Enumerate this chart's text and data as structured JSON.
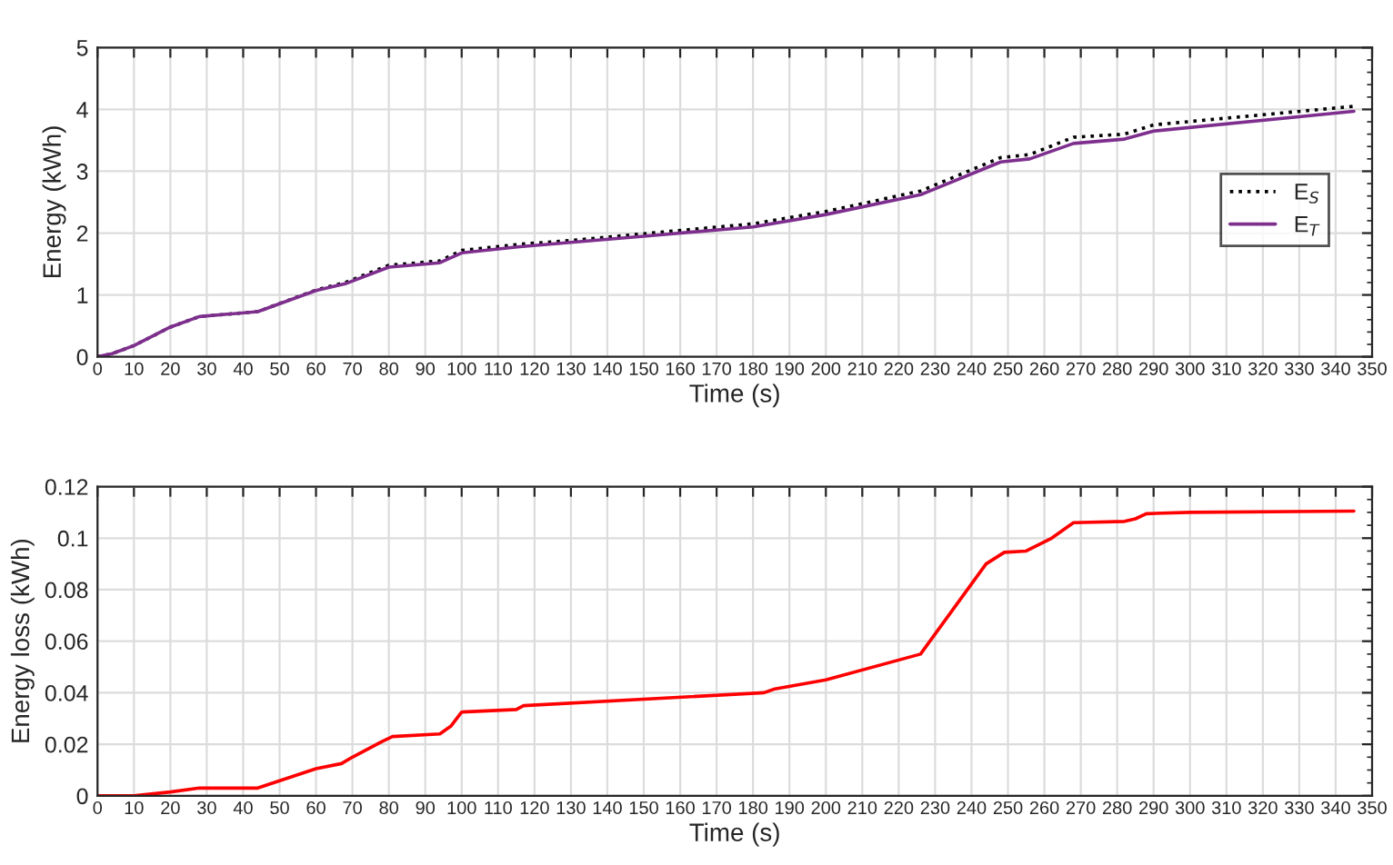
{
  "chart_data": [
    {
      "type": "line",
      "xlabel": "Time (s)",
      "ylabel": "Energy (kWh)",
      "xlim": [
        0,
        350
      ],
      "xticks": [
        0,
        10,
        20,
        30,
        40,
        50,
        60,
        70,
        80,
        90,
        100,
        110,
        120,
        130,
        140,
        150,
        160,
        170,
        180,
        190,
        200,
        210,
        220,
        230,
        240,
        250,
        260,
        270,
        280,
        290,
        300,
        310,
        320,
        330,
        340,
        350
      ],
      "ylim": [
        0,
        5
      ],
      "yticks": [
        0,
        1,
        2,
        3,
        4,
        5
      ],
      "grid": true,
      "legend": "right",
      "marker": "none",
      "series": [
        {
          "name": "E$_{S}$",
          "color": "#000000",
          "line_style": "dotted",
          "x": [
            0,
            4,
            10,
            20,
            28,
            44,
            60,
            68,
            80,
            94,
            100,
            116,
            130,
            150,
            180,
            200,
            226,
            248,
            256,
            268,
            282,
            290,
            345
          ],
          "values": [
            0,
            0.05,
            0.18,
            0.48,
            0.65,
            0.73,
            1.08,
            1.2,
            1.48,
            1.55,
            1.72,
            1.82,
            1.88,
            1.99,
            2.15,
            2.35,
            2.68,
            3.22,
            3.27,
            3.55,
            3.6,
            3.75,
            4.05
          ]
        },
        {
          "name": "E$_{T}$",
          "color": "#7e2f8e",
          "line_style": "solid",
          "x": [
            0,
            4,
            10,
            20,
            28,
            44,
            60,
            68,
            80,
            94,
            100,
            116,
            130,
            150,
            180,
            200,
            226,
            248,
            256,
            268,
            282,
            290,
            345
          ],
          "values": [
            0,
            0.05,
            0.18,
            0.48,
            0.65,
            0.73,
            1.07,
            1.18,
            1.45,
            1.52,
            1.68,
            1.78,
            1.85,
            1.95,
            2.1,
            2.3,
            2.62,
            3.15,
            3.2,
            3.45,
            3.52,
            3.65,
            3.97
          ]
        }
      ]
    },
    {
      "type": "line",
      "xlabel": "Time (s)",
      "ylabel": "Energy loss (kWh)",
      "xlim": [
        0,
        350
      ],
      "xticks": [
        0,
        10,
        20,
        30,
        40,
        50,
        60,
        70,
        80,
        90,
        100,
        110,
        120,
        130,
        140,
        150,
        160,
        170,
        180,
        190,
        200,
        210,
        220,
        230,
        240,
        250,
        260,
        270,
        280,
        290,
        300,
        310,
        320,
        330,
        340,
        350
      ],
      "ylim": [
        0,
        0.12
      ],
      "yticks": [
        0,
        0.02,
        0.04,
        0.06,
        0.08,
        0.1,
        0.12
      ],
      "grid": true,
      "marker": "none",
      "line_style": "solid",
      "series": [
        {
          "color": "#ff0000",
          "x": [
            0,
            10,
            20,
            28,
            44,
            60,
            67,
            70,
            78,
            81,
            94,
            97,
            100,
            115,
            117,
            183,
            186,
            200,
            226,
            244,
            249,
            255,
            262,
            268,
            282,
            285,
            288,
            300,
            345
          ],
          "values": [
            0,
            0,
            0.0015,
            0.003,
            0.003,
            0.0105,
            0.0125,
            0.015,
            0.021,
            0.023,
            0.024,
            0.027,
            0.0325,
            0.0335,
            0.035,
            0.04,
            0.0415,
            0.045,
            0.055,
            0.09,
            0.0945,
            0.095,
            0.1,
            0.106,
            0.1065,
            0.1075,
            0.1095,
            0.11,
            0.1105
          ]
        }
      ]
    }
  ]
}
